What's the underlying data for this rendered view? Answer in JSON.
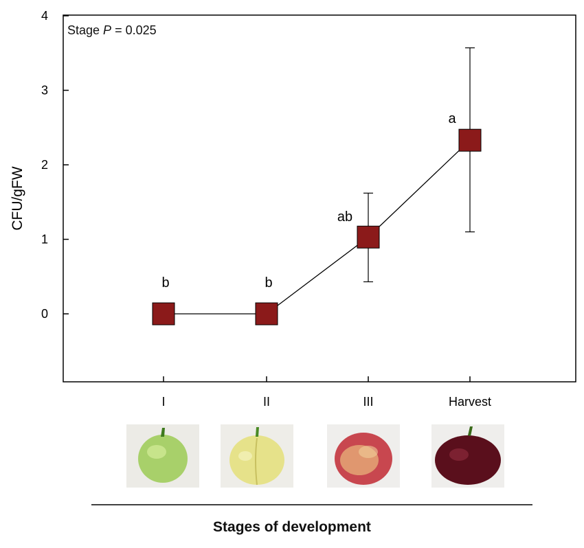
{
  "chart_data": {
    "type": "line",
    "annotation": {
      "prefix": "Stage ",
      "p_label": "P",
      "value_text": " = 0.025"
    },
    "ylabel": "CFU/gFW",
    "xlabel": "Stages of development",
    "categories": [
      "I",
      "II",
      "III",
      "Harvest"
    ],
    "ylim": [
      -0.9,
      4
    ],
    "yticks": [
      0,
      1,
      2,
      3,
      4
    ],
    "values": [
      0,
      0,
      1.03,
      2.33
    ],
    "error_low": [
      0,
      0,
      0.43,
      1.1
    ],
    "error_high": [
      0,
      0,
      1.62,
      3.57
    ],
    "significance_letters": [
      "b",
      "b",
      "ab",
      "a"
    ],
    "colors": {
      "marker": "#8b1a1a",
      "line": "#000000"
    }
  },
  "fruit_images": [
    {
      "stage": "I",
      "description": "green-fruit"
    },
    {
      "stage": "II",
      "description": "yellow-fruit"
    },
    {
      "stage": "III",
      "description": "blushing-fruit"
    },
    {
      "stage": "Harvest",
      "description": "dark-red-fruit"
    }
  ]
}
